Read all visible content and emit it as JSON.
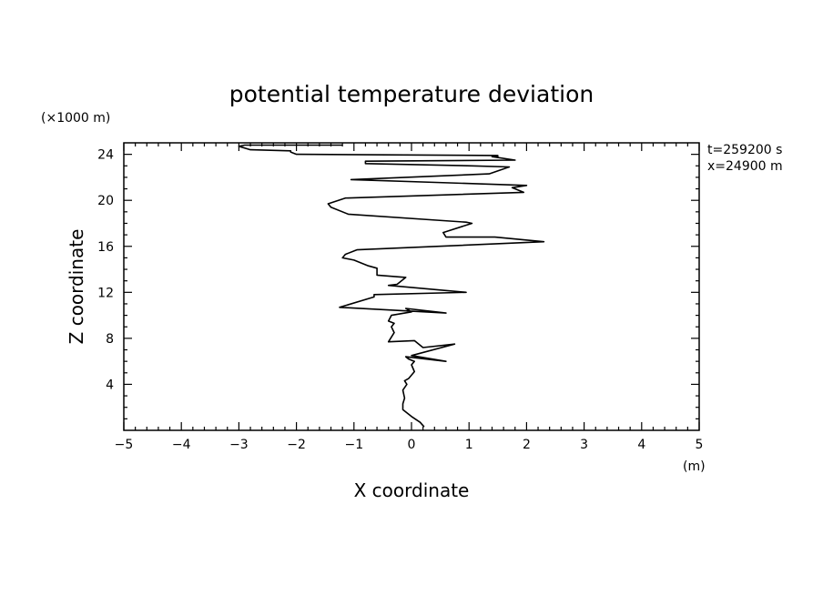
{
  "chart_data": {
    "type": "line",
    "title": "potential temperature deviation",
    "xlabel": "X coordinate",
    "ylabel": "Z coordinate",
    "x_unit": "(m)",
    "y_unit": "(×1000 m)",
    "xlim": [
      -5,
      5
    ],
    "ylim": [
      0,
      25
    ],
    "xticks": [
      -5,
      -4,
      -3,
      -2,
      -1,
      0,
      1,
      2,
      3,
      4,
      5
    ],
    "xtick_labels": [
      "−5",
      "−4",
      "−3",
      "−2",
      "−1",
      "0",
      "1",
      "2",
      "3",
      "4",
      "5"
    ],
    "yticks": [
      4,
      8,
      12,
      16,
      20,
      24
    ],
    "ytick_labels": [
      "4",
      "8",
      "12",
      "16",
      "20",
      "24"
    ],
    "annotations": [
      "t=259200 s",
      "x=24900 m"
    ],
    "grid": false,
    "series": [
      {
        "x": [
          0.22,
          0.15,
          0.0,
          -0.15,
          -0.15,
          -0.12,
          -0.15,
          -0.08,
          -0.12,
          -0.05,
          0.05,
          0.0,
          0.05,
          -0.05,
          -0.1,
          0.6,
          0.0,
          0.75,
          0.2,
          0.05,
          -0.4,
          -0.3,
          -0.35,
          -0.3,
          -0.4,
          -0.35,
          0.0,
          -0.1,
          0.6,
          -1.25,
          -0.65,
          -0.65,
          0.95,
          -0.4,
          -0.25,
          -0.1,
          -0.6,
          -0.6,
          -0.75,
          -1.0,
          -1.2,
          -1.15,
          -0.95,
          2.3,
          1.45,
          0.6,
          0.55,
          1.05,
          0.95,
          -1.1,
          -1.4,
          -1.45,
          -1.15,
          1.95,
          1.75,
          2.0,
          -1.05,
          1.35,
          1.7,
          1.05,
          -0.8,
          -0.8,
          1.8,
          1.4,
          1.5,
          1.5,
          -2.0,
          -2.1,
          -2.1,
          -2.8,
          -3.0,
          -2.9,
          -1.2
        ],
        "y": [
          0.3,
          0.7,
          1.2,
          1.8,
          2.3,
          2.8,
          3.5,
          4.0,
          4.3,
          4.5,
          5.1,
          5.7,
          6.0,
          6.2,
          6.4,
          6.0,
          6.5,
          7.5,
          7.2,
          7.8,
          7.7,
          8.5,
          9.0,
          9.3,
          9.5,
          10.0,
          10.3,
          10.6,
          10.2,
          10.7,
          11.6,
          11.8,
          12.0,
          12.6,
          12.7,
          13.3,
          13.5,
          14.1,
          14.3,
          14.8,
          15.0,
          15.3,
          15.7,
          16.4,
          16.8,
          16.8,
          17.2,
          18.0,
          18.1,
          18.8,
          19.4,
          19.7,
          20.2,
          20.7,
          21.1,
          21.3,
          21.8,
          22.3,
          22.9,
          23.0,
          23.2,
          23.4,
          23.5,
          23.8,
          23.8,
          23.9,
          24.0,
          24.2,
          24.3,
          24.4,
          24.7,
          24.8,
          24.8
        ]
      }
    ]
  }
}
